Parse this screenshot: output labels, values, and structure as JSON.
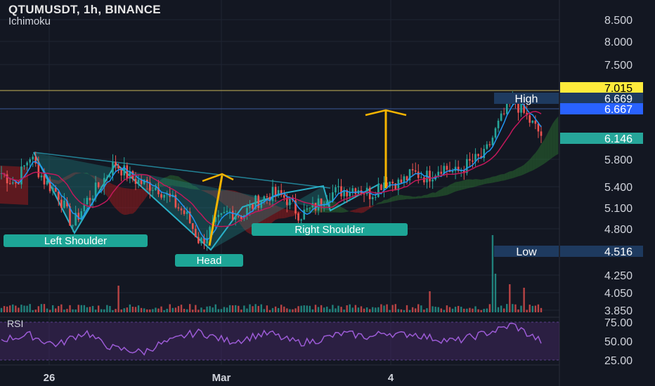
{
  "chart_title": "QTUMUSDT, 1h, BINANCE",
  "indicator_label": "Ichimoku",
  "rsi_label": "RSI",
  "colors": {
    "background": "#131722",
    "grid": "#1f2433",
    "up": "#26a69a",
    "down": "#ef5350",
    "tenkan": "#2196f3",
    "kijun": "#c2185b",
    "cloud_green": "#2e7d32",
    "cloud_red": "#b71c1c",
    "pattern_fill": "#1f8a8a",
    "arrow": "#f5b400",
    "rsi": "#9c5bd6"
  },
  "chart_data": [
    {
      "type": "candlestick",
      "title": "QTUMUSDT, 1h, BINANCE",
      "y_axis_ticks": [
        "8.500",
        "8.000",
        "7.500",
        "5.800",
        "5.400",
        "5.100",
        "4.800",
        "4.250",
        "4.050",
        "3.850"
      ],
      "x_axis_ticks": [
        "26",
        "Mar",
        "4"
      ],
      "price_tags": [
        {
          "label": "",
          "value": "7.015",
          "color": "#ffeb3b",
          "text_color": "#000000"
        },
        {
          "label": "High",
          "value": "6.669",
          "color": "#1e3a5f",
          "text_color": "#ffffff"
        },
        {
          "label": "",
          "value": "6.667",
          "color": "#2962ff",
          "text_color": "#ffffff"
        },
        {
          "label": "",
          "value": "6.146",
          "color": "#26a69a",
          "text_color": "#ffffff"
        },
        {
          "label": "Low",
          "value": "4.516",
          "color": "#1e3a5f",
          "text_color": "#ffffff"
        }
      ],
      "pattern_labels": [
        "Left Shoulder",
        "Head",
        "Right Shoulder"
      ],
      "approx_price_path": [
        5.6,
        5.45,
        5.85,
        5.5,
        5.3,
        4.85,
        5.2,
        5.45,
        5.75,
        5.55,
        5.45,
        5.4,
        5.2,
        5.0,
        4.6,
        4.85,
        5.05,
        5.0,
        5.2,
        5.3,
        5.25,
        5.0,
        5.1,
        5.3,
        5.35,
        5.4,
        5.3,
        5.5,
        5.45,
        5.6,
        5.55,
        5.7,
        5.6,
        5.75,
        5.85,
        6.3,
        6.67,
        6.4,
        6.15
      ]
    },
    {
      "type": "line",
      "title": "RSI",
      "y_axis_ticks": [
        "75.00",
        "50.00",
        "25.00"
      ],
      "approx_values": [
        52,
        55,
        58,
        50,
        45,
        55,
        62,
        48,
        40,
        38,
        35,
        45,
        50,
        58,
        62,
        55,
        50,
        52,
        58,
        60,
        52,
        48,
        50,
        55,
        60,
        58,
        55,
        62,
        58,
        60,
        55,
        52,
        50,
        55,
        60,
        65,
        72,
        60,
        50
      ]
    }
  ]
}
